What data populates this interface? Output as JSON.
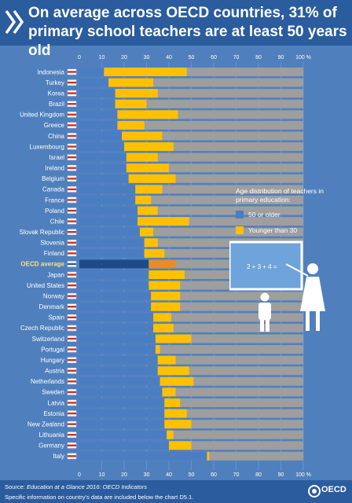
{
  "title": "On average across OECD countries, 31% of primary school teachers are at least 50 years old",
  "chart_data": {
    "type": "bar",
    "orientation": "horizontal",
    "stacked": true,
    "categories": [
      "Indonesia",
      "Turkey",
      "Korea",
      "Brazil",
      "United Kingdom",
      "Greece",
      "China",
      "Luxembourg",
      "Israel",
      "Ireland",
      "Belgium",
      "Canada",
      "France",
      "Poland",
      "Chile",
      "Slovak Republic",
      "Slovenia",
      "Finland",
      "OECD average",
      "Japan",
      "United States",
      "Norway",
      "Denmark",
      "Spain",
      "Czech Republic",
      "Switzerland",
      "Portugal",
      "Hungary",
      "Austria",
      "Netherlands",
      "Sweden",
      "Latvia",
      "Estonia",
      "New Zealand",
      "Lithuania",
      "Germany",
      "Italy"
    ],
    "highlight": "OECD average",
    "series": [
      {
        "name": "50 or older",
        "color": "#4a7dc2",
        "highlight_color": "#1e4a8a",
        "values": [
          11,
          13,
          16,
          16,
          17,
          17,
          19,
          20,
          21,
          21,
          22,
          25,
          25,
          26,
          26,
          27,
          29,
          29,
          31,
          31,
          31,
          32,
          32,
          33,
          33,
          34,
          34,
          35,
          35,
          36,
          37,
          38,
          38,
          38,
          39,
          40,
          57
        ]
      },
      {
        "name": "Younger than 30",
        "color": "#ffc000",
        "highlight_color": "#e98a2b",
        "values": [
          37,
          20,
          19,
          14,
          27,
          12,
          18,
          22,
          14,
          19,
          21,
          12,
          7,
          9,
          23,
          6,
          6,
          9,
          12,
          16,
          14,
          13,
          13,
          8,
          9,
          16,
          2,
          8,
          14,
          15,
          6,
          7,
          10,
          12,
          3,
          10,
          1
        ]
      }
    ],
    "xlim": [
      0,
      100
    ],
    "xticks": [
      "0",
      "10",
      "20",
      "30",
      "40",
      "50",
      "60",
      "70",
      "80",
      "90",
      "100 %"
    ],
    "grid": true,
    "legend": {
      "title": "Age distribution of teachers in primary education:",
      "items": [
        "50 or older",
        "Younger than 30"
      ],
      "placement": "right"
    }
  },
  "illustration": {
    "board_text": "2 + 3 + 4 ="
  },
  "footer": {
    "source_prefix": "Source: ",
    "source_publication": "Education at a Glance 2016: OECD Indicators",
    "note": "Specific information on country's data are included below the chart D5.1.",
    "logo_text": "OECD"
  },
  "colors": {
    "background": "#4f80bd",
    "header": "#2a5c9e",
    "bar_track": "#9e9e9e",
    "older": "#4a7dc2",
    "younger": "#ffc000"
  }
}
